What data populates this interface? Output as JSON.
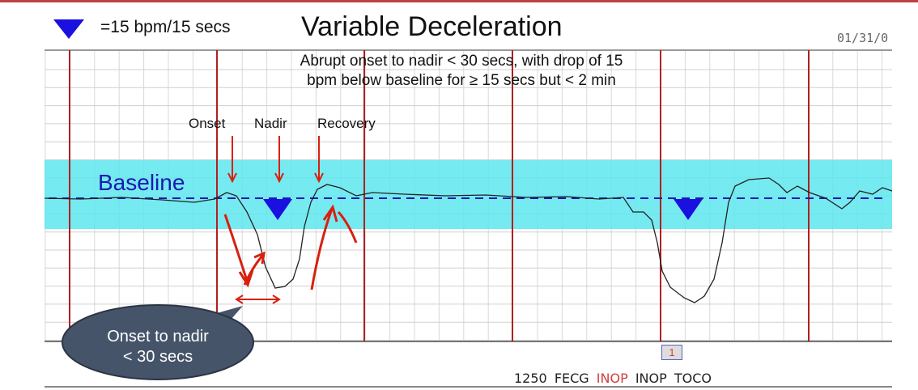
{
  "title": "Variable Deceleration",
  "legend": {
    "icon": "blue-down-triangle",
    "text": "=15 bpm/15 secs",
    "color": "#1a10e0"
  },
  "date": "01/31/0",
  "description": [
    "Abrupt onset to nadir < 30 secs, with drop of 15",
    "bpm below baseline for ≥ 15 secs but < 2 min"
  ],
  "labels": {
    "onset": "Onset",
    "nadir": "Nadir",
    "recovery": "Recovery",
    "baseline": "Baseline"
  },
  "callout": [
    "Onset to nadir",
    "< 30 secs"
  ],
  "marker": "1",
  "status": {
    "rate": "1250",
    "fecg": "FECG",
    "inop1": "INOP",
    "inop2": "INOP",
    "toco": "TOCO"
  },
  "colors": {
    "band": "#5ee6ee",
    "baseline": "#1a1ab0",
    "annotation": "#d82010",
    "callout": "#46546a",
    "major_grid": "#b02020"
  }
}
